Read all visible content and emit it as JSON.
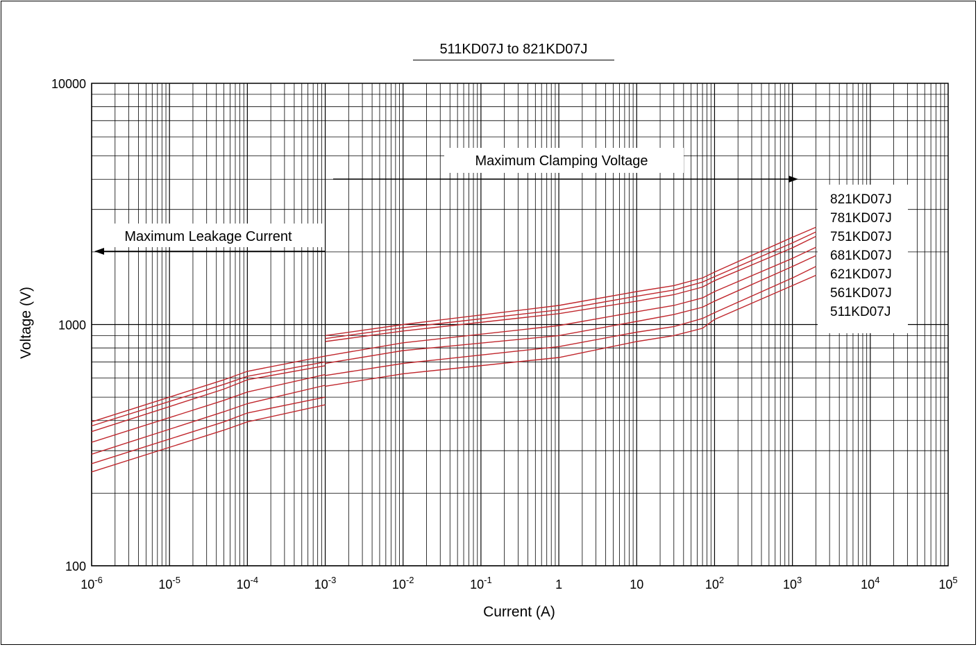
{
  "chart_data": {
    "type": "line",
    "title": "511KD07J to 821KD07J",
    "xlabel": "Current (A)",
    "ylabel": "Voltage (V)",
    "x_scale": "log",
    "y_scale": "log",
    "xlim": [
      1e-06,
      100000
    ],
    "ylim": [
      100,
      10000
    ],
    "grid": true,
    "x_tick_labels": [
      {
        "base": "10",
        "exp": "-6"
      },
      {
        "base": "10",
        "exp": "-5"
      },
      {
        "base": "10",
        "exp": "-4"
      },
      {
        "base": "10",
        "exp": "-3"
      },
      {
        "base": "10",
        "exp": "-2"
      },
      {
        "base": "10",
        "exp": "-1"
      },
      {
        "base": "1",
        "exp": ""
      },
      {
        "base": "10",
        "exp": ""
      },
      {
        "base": "10",
        "exp": "2"
      },
      {
        "base": "10",
        "exp": "3"
      },
      {
        "base": "10",
        "exp": "4"
      },
      {
        "base": "10",
        "exp": "5"
      }
    ],
    "y_tick_labels": [
      "10000",
      "1000",
      "100"
    ],
    "annotations": {
      "clamping": "Maximum Clamping Voltage",
      "leakage": "Maximum Leakage Current"
    },
    "line_color": "#c0272d",
    "series": [
      {
        "name": "821KD07J",
        "leakage": [
          [
            1e-06,
            395
          ],
          [
            5e-05,
            590
          ],
          [
            0.0001,
            640
          ],
          [
            0.001,
            740
          ]
        ],
        "clamping": [
          [
            0.001,
            900
          ],
          [
            0.01,
            1000
          ],
          [
            1,
            1200
          ],
          [
            10,
            1370
          ],
          [
            30,
            1450
          ],
          [
            70,
            1560
          ],
          [
            100,
            1650
          ],
          [
            1000,
            2300
          ],
          [
            2000,
            2530
          ]
        ]
      },
      {
        "name": "781KD07J",
        "leakage": [
          [
            1e-06,
            380
          ],
          [
            5e-05,
            565
          ],
          [
            0.0001,
            610
          ],
          [
            0.001,
            700
          ]
        ],
        "clamping": [
          [
            0.001,
            875
          ],
          [
            0.01,
            970
          ],
          [
            1,
            1150
          ],
          [
            10,
            1310
          ],
          [
            30,
            1390
          ],
          [
            70,
            1500
          ],
          [
            100,
            1580
          ],
          [
            1000,
            2180
          ],
          [
            2000,
            2420
          ]
        ]
      },
      {
        "name": "751KD07J",
        "leakage": [
          [
            1e-06,
            360
          ],
          [
            5e-05,
            540
          ],
          [
            0.0001,
            590
          ],
          [
            0.001,
            675
          ]
        ],
        "clamping": [
          [
            0.001,
            850
          ],
          [
            0.01,
            940
          ],
          [
            1,
            1110
          ],
          [
            10,
            1250
          ],
          [
            30,
            1330
          ],
          [
            70,
            1430
          ],
          [
            100,
            1520
          ],
          [
            1000,
            2080
          ],
          [
            2000,
            2320
          ]
        ]
      },
      {
        "name": "681KD07J",
        "leakage": [
          [
            1e-06,
            325
          ],
          [
            5e-05,
            485
          ],
          [
            0.0001,
            525
          ],
          [
            0.001,
            620
          ]
        ],
        "clamping": [
          [
            0.001,
            740
          ],
          [
            0.01,
            840
          ],
          [
            1,
            990
          ],
          [
            10,
            1130
          ],
          [
            30,
            1200
          ],
          [
            70,
            1290
          ],
          [
            100,
            1370
          ],
          [
            1000,
            1880
          ],
          [
            2000,
            2090
          ]
        ]
      },
      {
        "name": "621KD07J",
        "leakage": [
          [
            1e-06,
            290
          ],
          [
            5e-05,
            435
          ],
          [
            0.0001,
            470
          ],
          [
            0.001,
            560
          ]
        ],
        "clamping": [
          [
            0.001,
            690
          ],
          [
            0.01,
            780
          ],
          [
            1,
            900
          ],
          [
            10,
            1030
          ],
          [
            30,
            1100
          ],
          [
            70,
            1180
          ],
          [
            100,
            1250
          ],
          [
            1000,
            1740
          ],
          [
            2000,
            1930
          ]
        ]
      },
      {
        "name": "561KD07J",
        "leakage": [
          [
            1e-06,
            265
          ],
          [
            5e-05,
            395
          ],
          [
            0.0001,
            430
          ],
          [
            0.001,
            500
          ]
        ],
        "clamping": [
          [
            0.001,
            615
          ],
          [
            0.01,
            690
          ],
          [
            1,
            810
          ],
          [
            10,
            930
          ],
          [
            30,
            980
          ],
          [
            70,
            1060
          ],
          [
            100,
            1120
          ],
          [
            1000,
            1560
          ],
          [
            2000,
            1740
          ]
        ]
      },
      {
        "name": "511KD07J",
        "leakage": [
          [
            1e-06,
            245
          ],
          [
            5e-05,
            365
          ],
          [
            0.0001,
            395
          ],
          [
            0.001,
            465
          ]
        ],
        "clamping": [
          [
            0.001,
            555
          ],
          [
            0.01,
            625
          ],
          [
            1,
            730
          ],
          [
            10,
            850
          ],
          [
            30,
            900
          ],
          [
            70,
            965
          ],
          [
            100,
            1050
          ],
          [
            1000,
            1450
          ],
          [
            2000,
            1600
          ]
        ]
      }
    ]
  }
}
